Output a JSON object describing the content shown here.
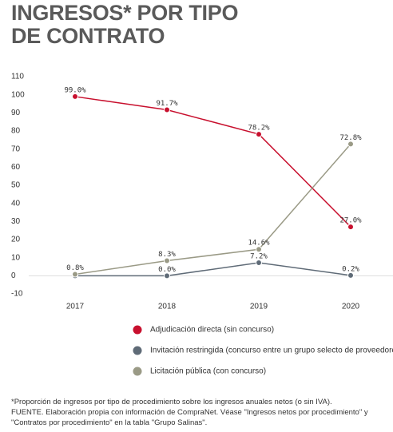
{
  "chart_data": {
    "type": "line",
    "title": "INGRESOS* POR TIPO DE CONTRATO",
    "categories": [
      "2017",
      "2018",
      "2019",
      "2020"
    ],
    "series": [
      {
        "name": "Adjudicación directa (sin concurso)",
        "color": "#c8102e",
        "values": [
          99.0,
          91.7,
          78.2,
          27.0
        ],
        "value_labels": [
          "99.0%",
          "91.7%",
          "78.2%",
          "27.0%"
        ]
      },
      {
        "name": "Invitación restringida (concurso entre un grupo selecto de proveedores)",
        "color": "#5f6b77",
        "values": [
          0.0,
          0.0,
          7.2,
          0.2
        ],
        "value_labels": [
          null,
          "0.0%",
          "7.2%",
          "0.2%"
        ]
      },
      {
        "name": "Licitación pública (con concurso)",
        "color": "#9a9a86",
        "values": [
          0.8,
          8.3,
          14.6,
          72.8
        ],
        "value_labels": [
          "0.8%",
          "8.3%",
          "14.6%",
          "72.8%"
        ]
      }
    ],
    "ylim": [
      -10,
      110
    ],
    "yticks": [
      -10,
      0,
      10,
      20,
      30,
      40,
      50,
      60,
      70,
      80,
      90,
      100,
      110
    ],
    "footnote": "*Proporción de ingresos por tipo de procedimiento sobre los ingresos anuales netos (o sin IVA).",
    "source": "FUENTE. Elaboración propia con información de CompraNet. Véase \"Ingresos netos por procedimiento\" y \"Contratos por procedimiento\" en la tabla \"Grupo Salinas\"."
  }
}
